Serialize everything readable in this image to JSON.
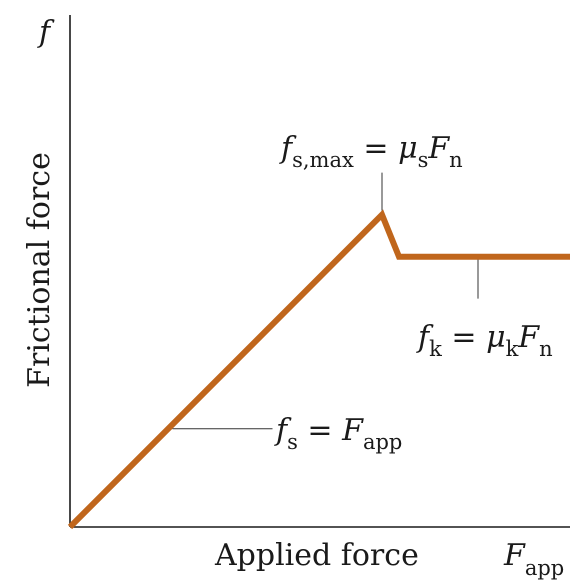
{
  "chart_data": {
    "type": "line",
    "title": "",
    "xlabel": "Applied force",
    "ylabel": "Frictional force",
    "x_axis_symbol": "F",
    "x_axis_symbol_sub": "app",
    "y_axis_symbol": "f",
    "ticks": "none",
    "grid": false,
    "xlim": [
      0,
      100
    ],
    "ylim": [
      0,
      100
    ],
    "line_color": "#c0661c",
    "series": [
      {
        "x": [
          0,
          62.4,
          65.8,
          100
        ],
        "y": [
          0,
          61,
          52.8,
          52.8
        ]
      }
    ],
    "annotations": [
      {
        "id": "static",
        "x": 20.5,
        "y": 19.2,
        "main": "f",
        "main_sub": "s",
        "rhs": "F",
        "rhs_sub": "app"
      },
      {
        "id": "max",
        "x": 62.4,
        "y": 61,
        "main": "f",
        "main_sub": "s,max",
        "coef": "μ",
        "coef_sub": "s",
        "rhs": "F",
        "rhs_sub": "n"
      },
      {
        "id": "kinetic",
        "x": 81.6,
        "y": 52.8,
        "main": "f",
        "main_sub": "k",
        "coef": "μ",
        "coef_sub": "k",
        "rhs": "F",
        "rhs_sub": "n"
      }
    ]
  }
}
